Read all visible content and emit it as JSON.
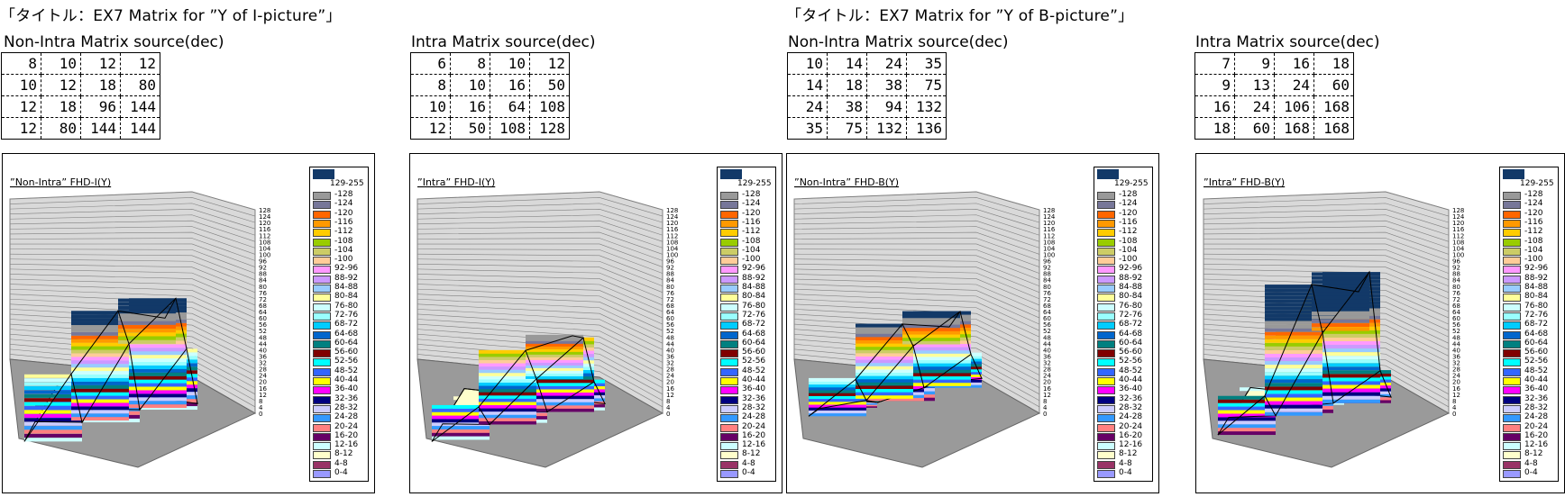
{
  "panels": [
    {
      "title": "「タイトル：EX7 Matrix for ”Y of I-picture”」",
      "matrices": [
        {
          "label": "Non-Intra Matrix source(dec)",
          "rows": [
            [
              8,
              10,
              12,
              12
            ],
            [
              10,
              12,
              18,
              80
            ],
            [
              12,
              18,
              96,
              144
            ],
            [
              12,
              80,
              144,
              144
            ]
          ]
        },
        {
          "label": "Intra Matrix source(dec)",
          "rows": [
            [
              6,
              8,
              10,
              12
            ],
            [
              8,
              10,
              16,
              50
            ],
            [
              10,
              16,
              64,
              108
            ],
            [
              12,
              50,
              108,
              128
            ]
          ]
        }
      ]
    },
    {
      "title": "「タイトル：EX7 Matrix for ”Y of B-picture”」",
      "matrices": [
        {
          "label": "Non-Intra Matrix source(dec)",
          "rows": [
            [
              10,
              14,
              24,
              35
            ],
            [
              14,
              18,
              38,
              75
            ],
            [
              24,
              38,
              94,
              132
            ],
            [
              35,
              75,
              132,
              136
            ]
          ]
        },
        {
          "label": "Intra Matrix source(dec)",
          "rows": [
            [
              7,
              9,
              16,
              18
            ],
            [
              9,
              13,
              24,
              60
            ],
            [
              16,
              24,
              106,
              168
            ],
            [
              18,
              60,
              168,
              168
            ]
          ]
        }
      ]
    }
  ],
  "chart_data": [
    {
      "type": "surface",
      "title": "”Non-Intra” FHD-I(Y)",
      "values": [
        [
          8,
          10,
          12,
          12
        ],
        [
          10,
          12,
          18,
          80
        ],
        [
          12,
          18,
          96,
          144
        ],
        [
          12,
          80,
          144,
          144
        ]
      ],
      "zlim": [
        0,
        128
      ]
    },
    {
      "type": "surface",
      "title": "”Intra” FHD-I(Y)",
      "values": [
        [
          6,
          8,
          10,
          12
        ],
        [
          8,
          10,
          16,
          50
        ],
        [
          10,
          16,
          64,
          108
        ],
        [
          12,
          50,
          108,
          128
        ]
      ],
      "zlim": [
        0,
        128
      ]
    },
    {
      "type": "surface",
      "title": "”Non-Intra” FHD-B(Y)",
      "values": [
        [
          10,
          14,
          24,
          35
        ],
        [
          14,
          18,
          38,
          75
        ],
        [
          24,
          38,
          94,
          132
        ],
        [
          35,
          75,
          132,
          136
        ]
      ],
      "zlim": [
        0,
        128
      ]
    },
    {
      "type": "surface",
      "title": "”Intra” FHD-B(Y)",
      "values": [
        [
          7,
          9,
          16,
          18
        ],
        [
          9,
          13,
          24,
          60
        ],
        [
          16,
          24,
          106,
          168
        ],
        [
          18,
          60,
          168,
          168
        ]
      ],
      "zlim": [
        0,
        128
      ]
    }
  ],
  "z_ticks": [
    "0",
    "4",
    "8",
    "12",
    "16",
    "20",
    "24",
    "28",
    "32",
    "36",
    "40",
    "44",
    "48",
    "52",
    "56",
    "60",
    "64",
    "68",
    "72",
    "76",
    "80",
    "84",
    "88",
    "92",
    "96",
    "100",
    "104",
    "108",
    "112",
    "116",
    "120",
    "124",
    "128"
  ],
  "legend": {
    "top_label": "129-255",
    "top_color": "#123968",
    "bands": [
      {
        "label": "-128",
        "color": "#999999"
      },
      {
        "label": "-124",
        "color": "#777799"
      },
      {
        "label": "-120",
        "color": "#ff6600"
      },
      {
        "label": "-116",
        "color": "#ff9900"
      },
      {
        "label": "-112",
        "color": "#ffcc00"
      },
      {
        "label": "-108",
        "color": "#99cc00"
      },
      {
        "label": "-104",
        "color": "#cccc66"
      },
      {
        "label": "-100",
        "color": "#ffcc99"
      },
      {
        "label": "92-96",
        "color": "#ff99ff"
      },
      {
        "label": "88-92",
        "color": "#cc99ff"
      },
      {
        "label": "84-88",
        "color": "#99ccff"
      },
      {
        "label": "80-84",
        "color": "#ffff99"
      },
      {
        "label": "76-80",
        "color": "#ccffff"
      },
      {
        "label": "72-76",
        "color": "#99ffff"
      },
      {
        "label": "68-72",
        "color": "#00ccff"
      },
      {
        "label": "64-68",
        "color": "#0066cc"
      },
      {
        "label": "60-64",
        "color": "#008080"
      },
      {
        "label": "56-60",
        "color": "#800000"
      },
      {
        "label": "52-56",
        "color": "#00ffff"
      },
      {
        "label": "48-52",
        "color": "#3366ff"
      },
      {
        "label": "40-44",
        "color": "#ffff00"
      },
      {
        "label": "36-40",
        "color": "#ff00ff"
      },
      {
        "label": "32-36",
        "color": "#000080"
      },
      {
        "label": "28-32",
        "color": "#ccccff"
      },
      {
        "label": "24-28",
        "color": "#3399ff"
      },
      {
        "label": "20-24",
        "color": "#ff8080"
      },
      {
        "label": "16-20",
        "color": "#660066"
      },
      {
        "label": "12-16",
        "color": "#ccffff"
      },
      {
        "label": "8-12",
        "color": "#ffffcc"
      },
      {
        "label": "4-8",
        "color": "#993366"
      },
      {
        "label": "0-4",
        "color": "#9999ff"
      }
    ]
  }
}
